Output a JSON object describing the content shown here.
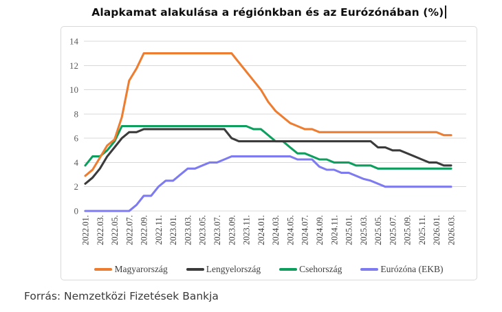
{
  "title": {
    "text": "Alapkamat alakulása a régiónkban és az Eurózónában (%)"
  },
  "source": {
    "text": "Forrás: Nemzetközi Fizetések Bankja"
  },
  "colors": {
    "grid": "#d8d8d8",
    "y_tick_text": "#5a5a5a",
    "x_tick_text": "#3f3f3f",
    "panel_border": "#d9d9d9",
    "title_text": "#0d0d0d",
    "source_text": "#3a3a3a"
  },
  "chart_data": {
    "type": "line",
    "title": "Alapkamat alakulása a régiónkban és az Eurózónában (%)",
    "xlabel": "",
    "ylabel": "",
    "ylim": [
      0,
      14
    ],
    "y_ticks": [
      0,
      2,
      4,
      6,
      8,
      10,
      12,
      14
    ],
    "grid": "horizontal",
    "legend_position": "bottom",
    "x": [
      "2022.01.",
      "2022.02.",
      "2022.03.",
      "2022.04.",
      "2022.05.",
      "2022.06.",
      "2022.07.",
      "2022.08.",
      "2022.09.",
      "2022.10.",
      "2022.11.",
      "2022.12.",
      "2023.01.",
      "2023.02.",
      "2023.03.",
      "2023.04.",
      "2023.05.",
      "2023.06.",
      "2023.07.",
      "2023.08.",
      "2023.09.",
      "2023.10.",
      "2023.11.",
      "2023.12.",
      "2024.01.",
      "2024.02.",
      "2024.03.",
      "2024.04.",
      "2024.05.",
      "2024.06.",
      "2024.07.",
      "2024.08.",
      "2024.09.",
      "2024.10.",
      "2024.11.",
      "2024.12.",
      "2025.01.",
      "2025.02.",
      "2025.03.",
      "2025.04.",
      "2025.05.",
      "2025.06.",
      "2025.07.",
      "2025.08.",
      "2025.09.",
      "2025.10.",
      "2025.11.",
      "2025.12.",
      "2026.01.",
      "2026.02.",
      "2026.03."
    ],
    "tick_labels": [
      "2022.01.",
      "2022.03.",
      "2022.05.",
      "2022.07.",
      "2022.09.",
      "2022.11.",
      "2023.01.",
      "2023.03.",
      "2023.05.",
      "2023.07.",
      "2023.09.",
      "2023.11.",
      "2024.01.",
      "2024.03.",
      "2024.05.",
      "2024.07.",
      "2024.09.",
      "2024.11.",
      "2025.01.",
      "2025.03.",
      "2025.05.",
      "2025.07.",
      "2025.09.",
      "2025.11.",
      "2026.01.",
      "2026.03."
    ],
    "tick_every": 2,
    "series": [
      {
        "name": "Magyarország",
        "color": "#ED7D31",
        "values": [
          2.9,
          3.4,
          4.4,
          5.4,
          5.9,
          7.75,
          10.75,
          11.75,
          13,
          13,
          13,
          13,
          13,
          13,
          13,
          13,
          13,
          13,
          13,
          13,
          13,
          12.25,
          11.5,
          10.75,
          10,
          9,
          8.25,
          7.75,
          7.25,
          7,
          6.75,
          6.75,
          6.5,
          6.5,
          6.5,
          6.5,
          6.5,
          6.5,
          6.5,
          6.5,
          6.5,
          6.5,
          6.5,
          6.5,
          6.5,
          6.5,
          6.5,
          6.5,
          6.5,
          6.25,
          6.25
        ]
      },
      {
        "name": "Lengyelország",
        "color": "#3B3B3B",
        "values": [
          2.25,
          2.75,
          3.5,
          4.5,
          5.25,
          6,
          6.5,
          6.5,
          6.75,
          6.75,
          6.75,
          6.75,
          6.75,
          6.75,
          6.75,
          6.75,
          6.75,
          6.75,
          6.75,
          6.75,
          6,
          5.75,
          5.75,
          5.75,
          5.75,
          5.75,
          5.75,
          5.75,
          5.75,
          5.75,
          5.75,
          5.75,
          5.75,
          5.75,
          5.75,
          5.75,
          5.75,
          5.75,
          5.75,
          5.75,
          5.25,
          5.25,
          5,
          5,
          4.75,
          4.5,
          4.25,
          4,
          4,
          3.75,
          3.75
        ]
      },
      {
        "name": "Csehország",
        "color": "#0E9F5F",
        "values": [
          3.75,
          4.5,
          4.5,
          5,
          5.75,
          7,
          7,
          7,
          7,
          7,
          7,
          7,
          7,
          7,
          7,
          7,
          7,
          7,
          7,
          7,
          7,
          7,
          7,
          6.75,
          6.75,
          6.25,
          5.75,
          5.75,
          5.25,
          4.75,
          4.75,
          4.5,
          4.25,
          4.25,
          4,
          4,
          4,
          3.75,
          3.75,
          3.75,
          3.5,
          3.5,
          3.5,
          3.5,
          3.5,
          3.5,
          3.5,
          3.5,
          3.5,
          3.5,
          3.5
        ]
      },
      {
        "name": "Eurózóna (EKB)",
        "color": "#7D7BEF",
        "values": [
          0,
          0,
          0,
          0,
          0,
          0,
          0,
          0.5,
          1.25,
          1.25,
          2,
          2.5,
          2.5,
          3,
          3.5,
          3.5,
          3.75,
          4,
          4,
          4.25,
          4.5,
          4.5,
          4.5,
          4.5,
          4.5,
          4.5,
          4.5,
          4.5,
          4.5,
          4.25,
          4.25,
          4.25,
          3.65,
          3.4,
          3.4,
          3.15,
          3.15,
          2.9,
          2.65,
          2.5,
          2.25,
          2,
          2,
          2,
          2,
          2,
          2,
          2,
          2,
          2,
          2
        ]
      }
    ]
  }
}
